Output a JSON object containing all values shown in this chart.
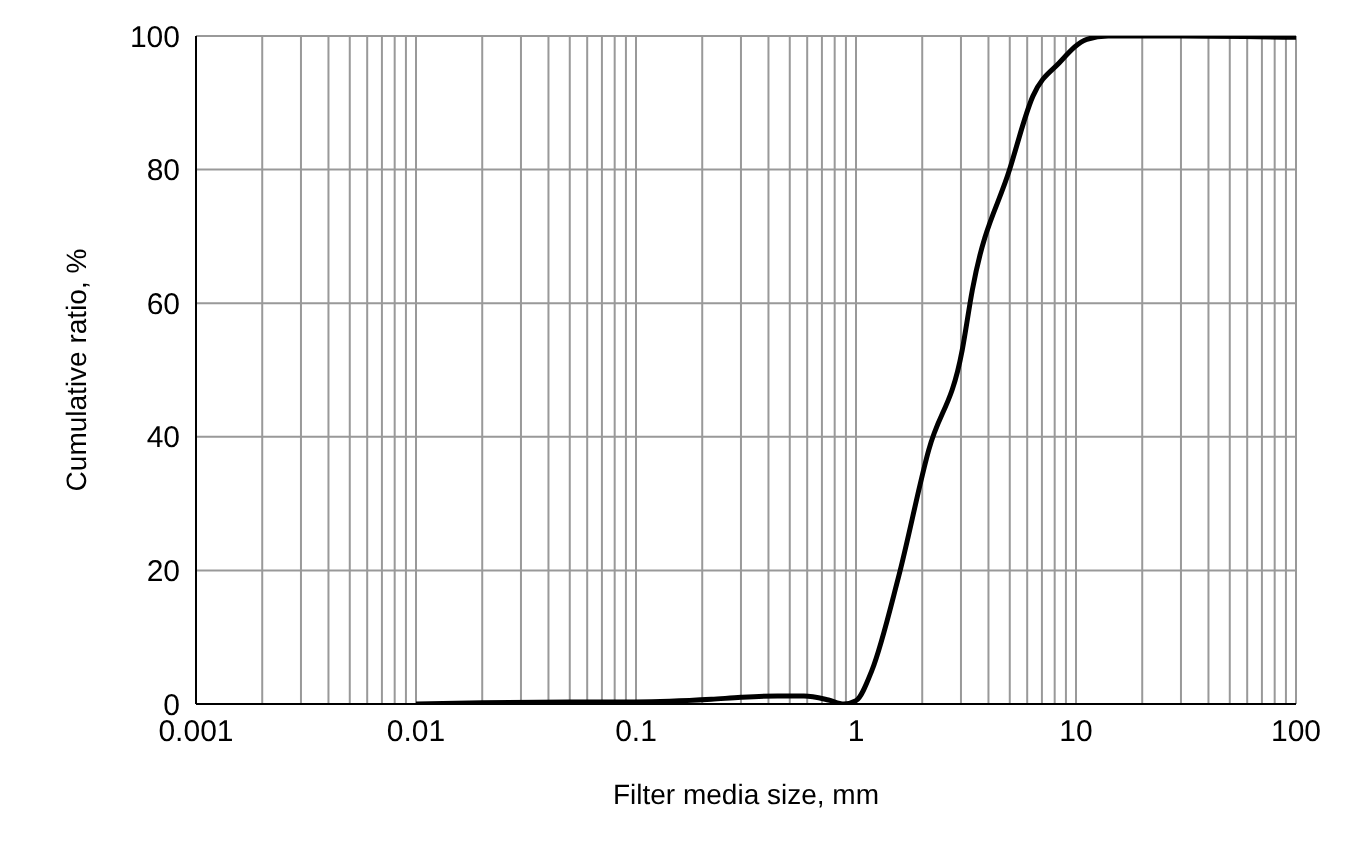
{
  "chart_data": {
    "type": "line",
    "xlabel": "Filter media size, mm",
    "ylabel": "Cumulative ratio, %",
    "log": "x",
    "grid": true,
    "marker": "none",
    "line_style": "solid",
    "xlim": [
      0.001,
      100
    ],
    "ylim": [
      0,
      100
    ],
    "yticks": [
      0,
      20,
      40,
      60,
      80,
      100
    ],
    "xticks": [
      {
        "value": 0.001,
        "label": "0.001"
      },
      {
        "value": 0.002,
        "label": null
      },
      {
        "value": 0.003,
        "label": null
      },
      {
        "value": 0.004,
        "label": null
      },
      {
        "value": 0.005,
        "label": null
      },
      {
        "value": 0.006,
        "label": null
      },
      {
        "value": 0.007,
        "label": null
      },
      {
        "value": 0.008,
        "label": null
      },
      {
        "value": 0.009,
        "label": null
      },
      {
        "value": 0.01,
        "label": "0.01"
      },
      {
        "value": 0.02,
        "label": null
      },
      {
        "value": 0.03,
        "label": null
      },
      {
        "value": 0.04,
        "label": null
      },
      {
        "value": 0.05,
        "label": null
      },
      {
        "value": 0.06,
        "label": null
      },
      {
        "value": 0.07,
        "label": null
      },
      {
        "value": 0.08,
        "label": null
      },
      {
        "value": 0.09,
        "label": null
      },
      {
        "value": 0.1,
        "label": "0.1"
      },
      {
        "value": 0.2,
        "label": null
      },
      {
        "value": 0.3,
        "label": null
      },
      {
        "value": 0.4,
        "label": null
      },
      {
        "value": 0.5,
        "label": null
      },
      {
        "value": 0.6,
        "label": null
      },
      {
        "value": 0.7,
        "label": null
      },
      {
        "value": 0.8,
        "label": null
      },
      {
        "value": 0.9,
        "label": null
      },
      {
        "value": 1,
        "label": "1"
      },
      {
        "value": 2,
        "label": null
      },
      {
        "value": 3,
        "label": null
      },
      {
        "value": 4,
        "label": null
      },
      {
        "value": 5,
        "label": null
      },
      {
        "value": 6,
        "label": null
      },
      {
        "value": 7,
        "label": null
      },
      {
        "value": 8,
        "label": null
      },
      {
        "value": 9,
        "label": null
      },
      {
        "value": 10,
        "label": "10"
      },
      {
        "value": 20,
        "label": null
      },
      {
        "value": 30,
        "label": null
      },
      {
        "value": 40,
        "label": null
      },
      {
        "value": 50,
        "label": null
      },
      {
        "value": 60,
        "label": null
      },
      {
        "value": 70,
        "label": null
      },
      {
        "value": 80,
        "label": null
      },
      {
        "value": 90,
        "label": null
      },
      {
        "value": 100,
        "label": "100"
      }
    ],
    "series": [
      {
        "color": "#000000",
        "x": [
          0.01,
          0.02,
          0.05,
          0.1,
          0.22,
          0.3,
          0.44,
          0.58,
          0.75,
          0.88,
          1.0,
          1.18,
          1.56,
          2.14,
          3.04,
          3.38,
          4.99,
          6.37,
          8.4,
          11.2,
          14,
          30,
          100
        ],
        "values": [
          0,
          0.2,
          0.3,
          0.3,
          0.7,
          1,
          1.2,
          1.2,
          0.6,
          0,
          0.5,
          5,
          19,
          38,
          53,
          62,
          80,
          91,
          96,
          99.5,
          100,
          100,
          99.8
        ]
      }
    ]
  }
}
